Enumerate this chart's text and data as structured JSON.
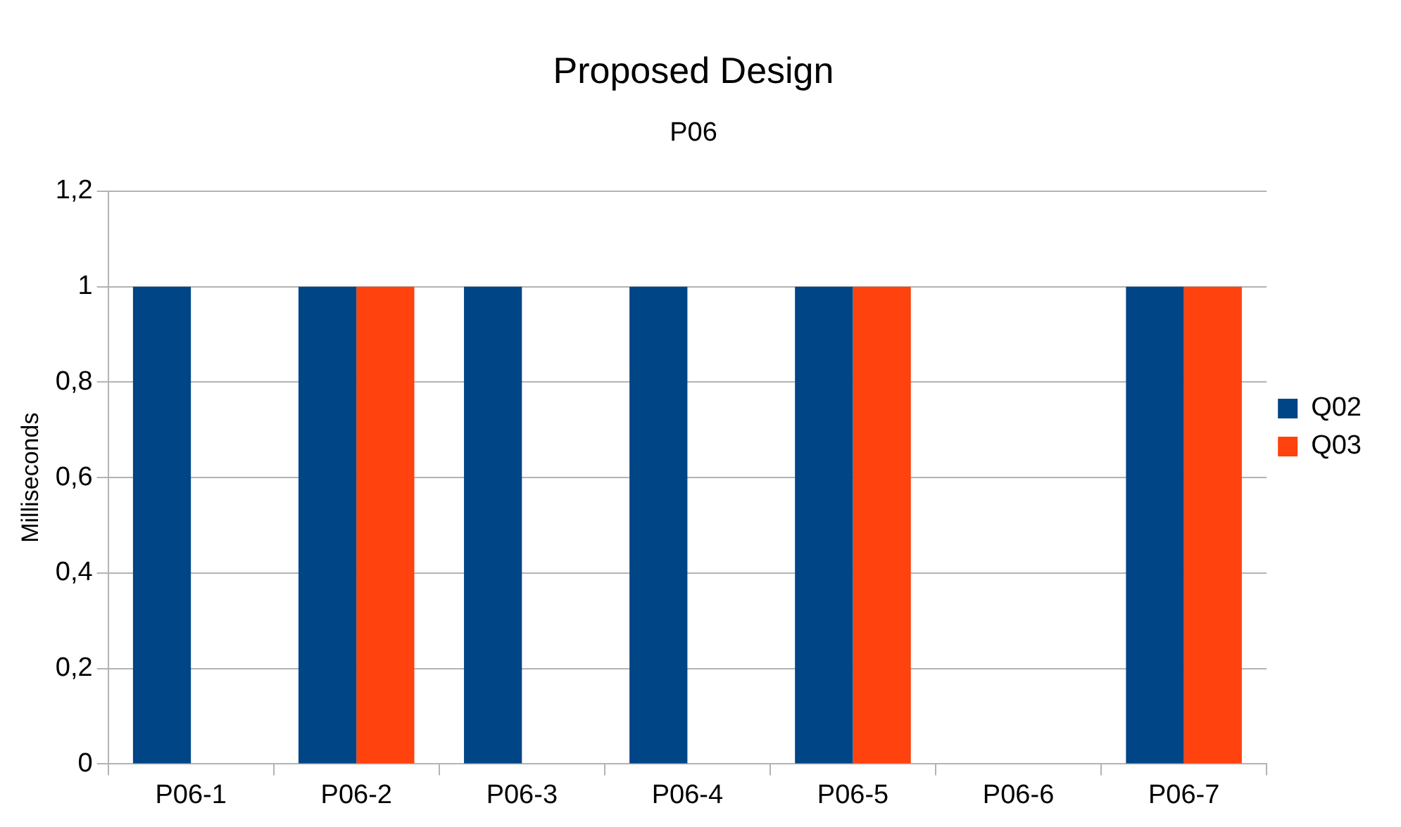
{
  "chart_data": {
    "type": "bar",
    "title": "Proposed Design",
    "subtitle": "P06",
    "ylabel": "Milliseconds",
    "categories": [
      "P06-1",
      "P06-2",
      "P06-3",
      "P06-4",
      "P06-5",
      "P06-6",
      "P06-7"
    ],
    "series": [
      {
        "name": "Q02",
        "color": "#004586",
        "values": [
          1,
          1,
          1,
          1,
          1,
          0,
          1
        ]
      },
      {
        "name": "Q03",
        "color": "#ff420e",
        "values": [
          0,
          1,
          0,
          0,
          1,
          0,
          1
        ]
      }
    ],
    "ylim": [
      0,
      1.2
    ],
    "yticks": [
      {
        "value": 0,
        "label": "0"
      },
      {
        "value": 0.2,
        "label": "0,2"
      },
      {
        "value": 0.4,
        "label": "0,4"
      },
      {
        "value": 0.6,
        "label": "0,6"
      },
      {
        "value": 0.8,
        "label": "0,8"
      },
      {
        "value": 1,
        "label": "1"
      },
      {
        "value": 1.2,
        "label": "1,2"
      }
    ],
    "grid": "y",
    "legend": "right"
  }
}
